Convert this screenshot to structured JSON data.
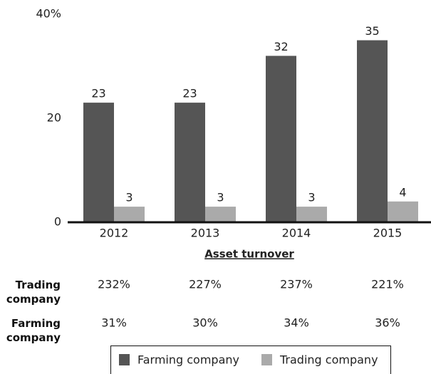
{
  "chart_data": {
    "type": "bar",
    "categories": [
      "2012",
      "2013",
      "2014",
      "2015"
    ],
    "series": [
      {
        "name": "Farming company",
        "color": "#555555",
        "values": [
          23,
          23,
          32,
          35
        ]
      },
      {
        "name": "Trading company",
        "color": "#aaaaaa",
        "values": [
          3,
          3,
          3,
          4
        ]
      }
    ],
    "ylim": [
      0,
      40
    ],
    "yticks": [
      0,
      20,
      {
        "value": 40,
        "label": "40%"
      }
    ],
    "grid": false,
    "legend": "bottom",
    "table": {
      "title": "Asset turnover",
      "rows": [
        {
          "label": "Trading company",
          "values": [
            "232%",
            "227%",
            "237%",
            "221%"
          ]
        },
        {
          "label": "Farming company",
          "values": [
            "31%",
            "30%",
            "34%",
            "36%"
          ]
        }
      ]
    }
  }
}
